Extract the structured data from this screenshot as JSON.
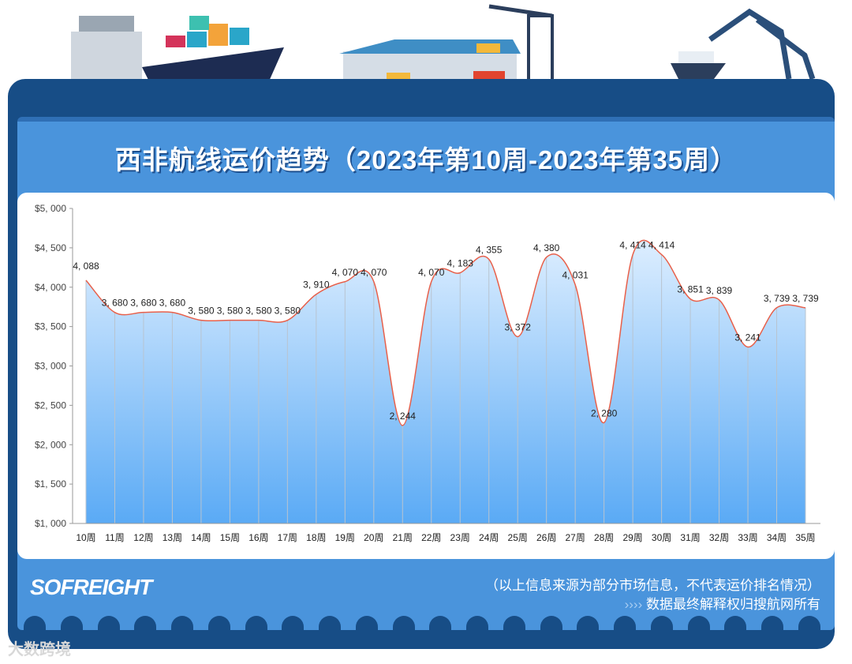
{
  "title": "西非航线运价趋势（2023年第10周-2023年第35周）",
  "footer": {
    "logo": "SOFREIGHT",
    "source_note": "（以上信息来源为部分市场信息，不代表运价排名情况）",
    "rights_arrows": "››››",
    "rights": "数据最终解释权归搜航网所有"
  },
  "watermark": "大数跨境",
  "colors": {
    "frame": "#174d86",
    "panel": "#4a94dc",
    "line": "#e8604a",
    "fill_top": "#ddeeff",
    "fill_bottom": "#5aaaf5"
  },
  "chart_data": {
    "type": "area",
    "title": "西非航线运价趋势（2023年第10周-2023年第35周）",
    "categories": [
      "10周",
      "11周",
      "12周",
      "13周",
      "14周",
      "15周",
      "16周",
      "17周",
      "18周",
      "19周",
      "20周",
      "21周",
      "22周",
      "23周",
      "24周",
      "25周",
      "26周",
      "27周",
      "28周",
      "29周",
      "30周",
      "31周",
      "32周",
      "33周",
      "34周",
      "35周"
    ],
    "values": [
      4088,
      3680,
      3680,
      3680,
      3580,
      3580,
      3580,
      3580,
      3910,
      4070,
      4070,
      2244,
      4070,
      4183,
      4355,
      3372,
      4380,
      4031,
      2280,
      4414,
      4414,
      3851,
      3839,
      3241,
      3739,
      3739
    ],
    "data_labels": [
      "4, 088",
      "3, 680",
      "3, 680",
      "3, 680",
      "3, 580",
      "3, 580",
      "3, 580",
      "3, 580",
      "3, 910",
      "4, 070",
      "4, 070",
      "2, 244",
      "4, 070",
      "4, 183",
      "4, 355",
      "3, 372",
      "4, 380",
      "4, 031",
      "2, 280",
      "4, 414",
      "4, 414",
      "3, 851",
      "3, 839",
      "3, 241",
      "3, 739",
      "3, 739"
    ],
    "yticks": [
      "$1, 000",
      "$1, 500",
      "$2, 000",
      "$2, 500",
      "$3, 000",
      "$3, 500",
      "$4, 000",
      "$4, 500",
      "$5, 000"
    ],
    "ylim": [
      1000,
      5000
    ],
    "grid": false,
    "smooth": true
  }
}
